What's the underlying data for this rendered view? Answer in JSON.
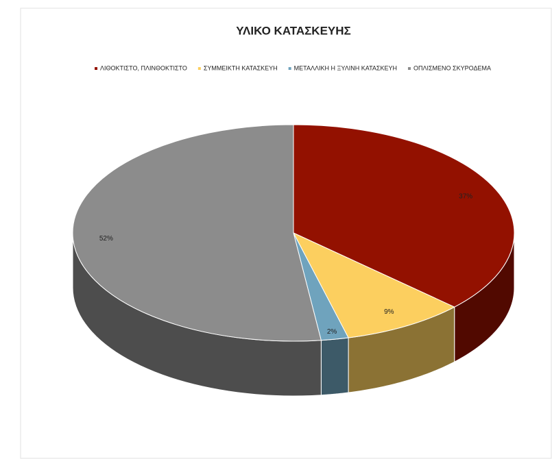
{
  "chart_data": {
    "type": "pie3d",
    "title": "ΥΛΙΚΟ ΚΑΤΑΣΚΕΥΗΣ",
    "categories": [
      "ΛΙΘΟΚΤΙΣΤΟ, ΠΛΙΝΘΟΚΤΙΣΤΟ",
      "ΣΥΜΜΕΙΚΤΗ ΚΑΤΑΣΚΕΥΗ",
      "ΜΕΤΑΛΛΙΚΗ Η ΞΥΛΙΝΗ ΚΑΤΑΣΚΕΥΗ",
      "ΟΠΛΙΣΜΕΝΟ ΣΚΥΡΟΔΕΜΑ"
    ],
    "values": [
      37,
      9,
      2,
      52
    ],
    "value_labels": [
      "37%",
      "9%",
      "2%",
      "52%"
    ],
    "colors": [
      "#931100",
      "#fccf5f",
      "#6fa3bd",
      "#8c8c8c"
    ],
    "legend": "top"
  }
}
